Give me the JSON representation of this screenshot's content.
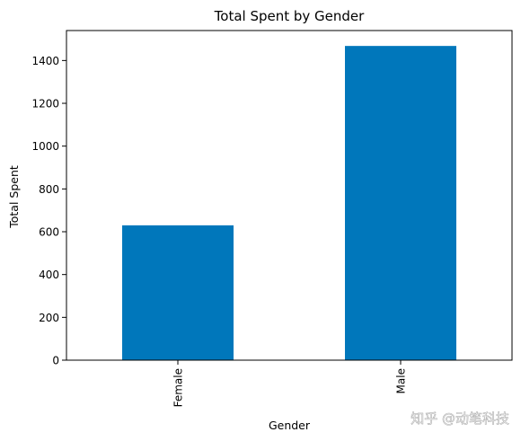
{
  "chart_data": {
    "type": "bar",
    "title": "Total Spent by Gender",
    "xlabel": "Gender",
    "ylabel": "Total Spent",
    "categories": [
      "Female",
      "Male"
    ],
    "values": [
      630,
      1468
    ],
    "ylim": [
      0,
      1540
    ],
    "yticks": [
      0,
      200,
      400,
      600,
      800,
      1000,
      1200,
      1400
    ],
    "grid": false,
    "bar_color": "#0077bb"
  },
  "watermark": {
    "text": "知乎 @动笔科技"
  }
}
